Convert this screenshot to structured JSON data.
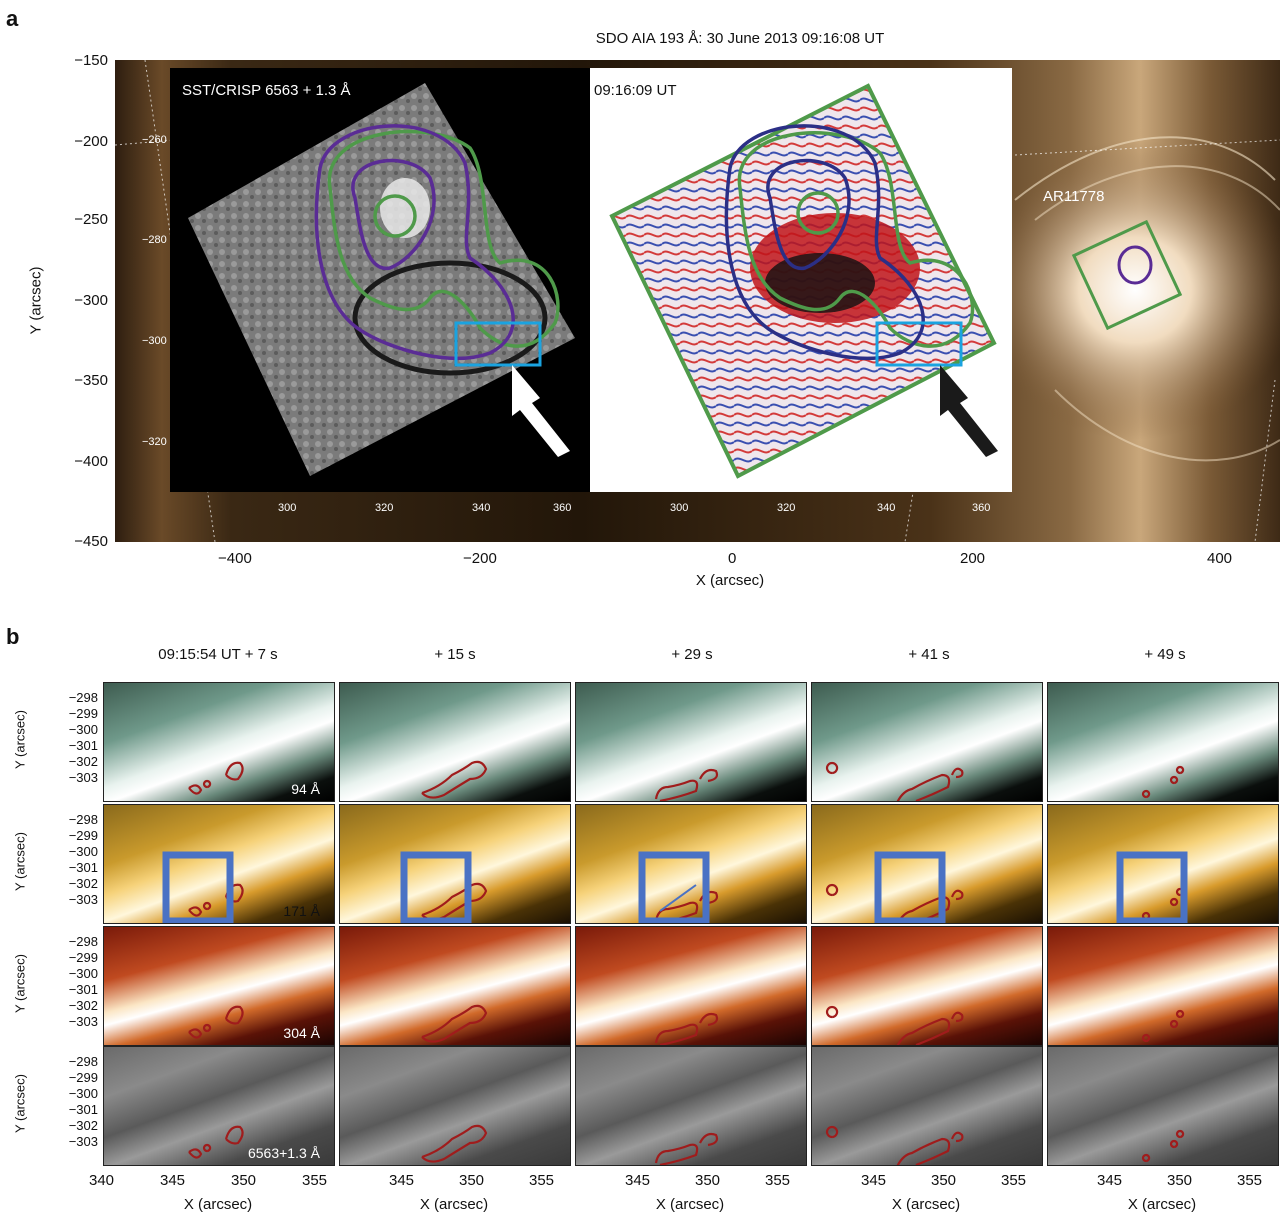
{
  "panel_a": {
    "letter": "a",
    "title": "SDO AIA 193 Å: 30 June 2013 09:16:08 UT",
    "xlabel": "X (arcsec)",
    "ylabel": "Y (arcsec)",
    "xticks": [
      "−400",
      "−200",
      "0",
      "200",
      "400"
    ],
    "yticks": [
      "−150",
      "−200",
      "−250",
      "−300",
      "−350",
      "−400",
      "−450"
    ],
    "ar_label": "AR11778",
    "inset_left": {
      "label": "SST/CRISP 6563 + 1.3 Å",
      "yticks": [
        "−260",
        "−280",
        "−300",
        "−320"
      ],
      "xticks": [
        "300",
        "320",
        "340",
        "360"
      ]
    },
    "inset_right": {
      "label": "09:16:09 UT",
      "xticks": [
        "300",
        "320",
        "340",
        "360"
      ]
    },
    "colors": {
      "green": "#4f9a4a",
      "purple": "#5a2c95",
      "blue": "#1aa3e0",
      "navy": "#2b2f86"
    }
  },
  "panel_b": {
    "letter": "b",
    "column_titles": [
      "09:15:54 UT + 7 s",
      "+ 15 s",
      "+ 29 s",
      "+ 41 s",
      "+ 49 s"
    ],
    "row_labels": [
      "94 Å",
      "171 Å",
      "304 Å",
      "6563+1.3 Å"
    ],
    "ylabel": "Y (arcsec)",
    "yticks": [
      "−298",
      "−299",
      "−300",
      "−301",
      "−302",
      "−303"
    ],
    "xlabel": "X (arcsec)",
    "xticks_first": [
      "340",
      "345",
      "350",
      "355"
    ],
    "xticks_other": [
      "345",
      "350",
      "355"
    ],
    "colors": {
      "box": "#4a72c4",
      "contour": "#a01c1c"
    }
  }
}
